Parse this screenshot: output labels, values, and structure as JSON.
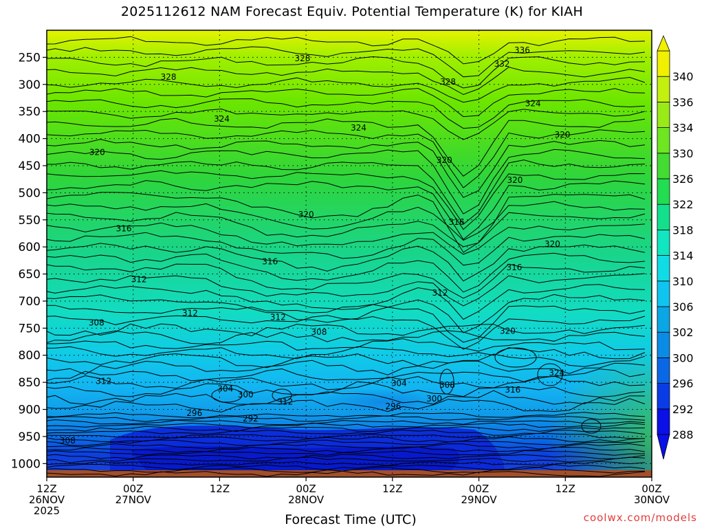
{
  "title": "2025112612 NAM Forecast Equiv. Potential Temperature (K) for KIAH",
  "xlabel": "Forecast Time (UTC)",
  "credit": "coolwx.com/models",
  "chart_data": {
    "type": "heatmap",
    "title": "2025112612 NAM Forecast Equiv. Potential Temperature (K) for KIAH",
    "xlabel": "Forecast Time (UTC)",
    "ylabel": "",
    "y_axis": {
      "ticks": [
        250,
        300,
        350,
        400,
        450,
        500,
        550,
        600,
        650,
        700,
        750,
        800,
        850,
        900,
        950,
        1000
      ],
      "range": [
        200,
        1025
      ]
    },
    "x_axis": {
      "range_hours": [
        0,
        84
      ],
      "ticks": [
        {
          "hour": 0,
          "lines": [
            "12Z",
            "26NOV",
            "2025"
          ]
        },
        {
          "hour": 12,
          "lines": [
            "00Z",
            "27NOV"
          ]
        },
        {
          "hour": 24,
          "lines": [
            "12Z"
          ]
        },
        {
          "hour": 36,
          "lines": [
            "00Z",
            "28NOV"
          ]
        },
        {
          "hour": 48,
          "lines": [
            "12Z"
          ]
        },
        {
          "hour": 60,
          "lines": [
            "00Z",
            "29NOV"
          ]
        },
        {
          "hour": 72,
          "lines": [
            "12Z"
          ]
        },
        {
          "hour": 84,
          "lines": [
            "00Z",
            "30NOV"
          ]
        }
      ]
    },
    "colorbar": {
      "levels": [
        288,
        292,
        296,
        300,
        302,
        306,
        310,
        314,
        318,
        322,
        326,
        330,
        334,
        336,
        340
      ],
      "labels": [
        "288",
        "292",
        "296",
        "300",
        "302",
        "306",
        "310",
        "314",
        "318",
        "322",
        "326",
        "330",
        "334",
        "336",
        "340"
      ]
    },
    "contour_labels": [
      {
        "text": "336",
        "hour": 66.0,
        "p": 237
      },
      {
        "text": "332",
        "hour": 63.2,
        "p": 262
      },
      {
        "text": "328",
        "hour": 35.5,
        "p": 252
      },
      {
        "text": "328",
        "hour": 16.9,
        "p": 286
      },
      {
        "text": "328",
        "hour": 55.7,
        "p": 295
      },
      {
        "text": "324",
        "hour": 67.5,
        "p": 335
      },
      {
        "text": "324",
        "hour": 24.3,
        "p": 364
      },
      {
        "text": "324",
        "hour": 43.3,
        "p": 380
      },
      {
        "text": "320",
        "hour": 71.6,
        "p": 393
      },
      {
        "text": "320",
        "hour": 7.0,
        "p": 425
      },
      {
        "text": "320",
        "hour": 55.2,
        "p": 440
      },
      {
        "text": "320",
        "hour": 65.0,
        "p": 477
      },
      {
        "text": "320",
        "hour": 36.0,
        "p": 540
      },
      {
        "text": "316",
        "hour": 10.7,
        "p": 566
      },
      {
        "text": "316",
        "hour": 56.9,
        "p": 554
      },
      {
        "text": "320",
        "hour": 70.2,
        "p": 595
      },
      {
        "text": "316",
        "hour": 31.0,
        "p": 627
      },
      {
        "text": "316",
        "hour": 64.9,
        "p": 638
      },
      {
        "text": "312",
        "hour": 12.8,
        "p": 660
      },
      {
        "text": "312",
        "hour": 54.6,
        "p": 685
      },
      {
        "text": "312",
        "hour": 19.9,
        "p": 722
      },
      {
        "text": "312",
        "hour": 32.1,
        "p": 730
      },
      {
        "text": "320",
        "hour": 64.0,
        "p": 755
      },
      {
        "text": "308",
        "hour": 6.9,
        "p": 740
      },
      {
        "text": "308",
        "hour": 37.8,
        "p": 757
      },
      {
        "text": "324",
        "hour": 70.8,
        "p": 833
      },
      {
        "text": "312",
        "hour": 7.9,
        "p": 848
      },
      {
        "text": "304",
        "hour": 24.8,
        "p": 862
      },
      {
        "text": "304",
        "hour": 48.9,
        "p": 852
      },
      {
        "text": "308",
        "hour": 55.6,
        "p": 855
      },
      {
        "text": "300",
        "hour": 27.6,
        "p": 873
      },
      {
        "text": "312",
        "hour": 33.1,
        "p": 886
      },
      {
        "text": "300",
        "hour": 53.8,
        "p": 880
      },
      {
        "text": "316",
        "hour": 64.7,
        "p": 864
      },
      {
        "text": "296",
        "hour": 20.5,
        "p": 907
      },
      {
        "text": "296",
        "hour": 48.1,
        "p": 894
      },
      {
        "text": "292",
        "hour": 28.3,
        "p": 917
      },
      {
        "text": "308",
        "hour": 2.9,
        "p": 958
      }
    ]
  }
}
